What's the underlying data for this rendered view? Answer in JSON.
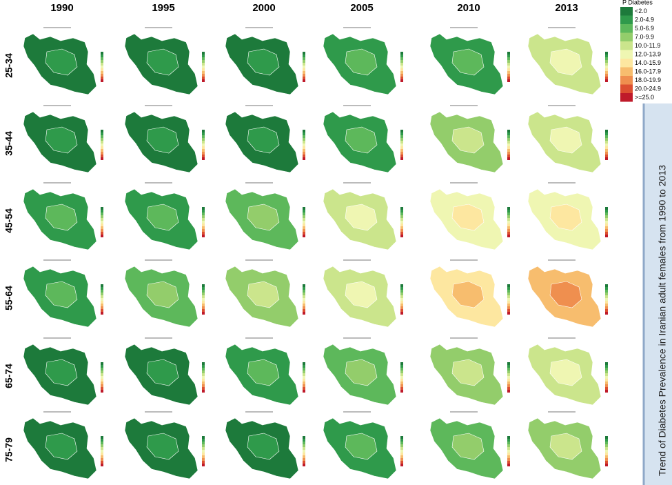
{
  "columns": [
    "1990",
    "1995",
    "2000",
    "2005",
    "2010",
    "2013"
  ],
  "rows": [
    "25-34",
    "35-44",
    "45-54",
    "55-64",
    "65-74",
    "75-79"
  ],
  "legend": {
    "title": "P Diabetes",
    "items": [
      {
        "label": "<2.0",
        "color": "#1d7a3b"
      },
      {
        "label": "2.0-4.9",
        "color": "#2f9a4b"
      },
      {
        "label": "5.0-6.9",
        "color": "#5db85b"
      },
      {
        "label": "7.0-9.9",
        "color": "#93cd6b"
      },
      {
        "label": "10.0-11.9",
        "color": "#cbe58c"
      },
      {
        "label": "12.0-13.9",
        "color": "#eff6b2"
      },
      {
        "label": "14.0-15.9",
        "color": "#fde7a0"
      },
      {
        "label": "16.0-17.9",
        "color": "#f7bd6e"
      },
      {
        "label": "18.0-19.9",
        "color": "#ef8f4f"
      },
      {
        "label": "20.0-24.9",
        "color": "#dc4f31"
      },
      {
        "label": ">=25.0",
        "color": "#bf1a2a"
      }
    ]
  },
  "caption": "Trend of Diabetes Prevalence in Iranian adult females from 1990 to 2013"
}
